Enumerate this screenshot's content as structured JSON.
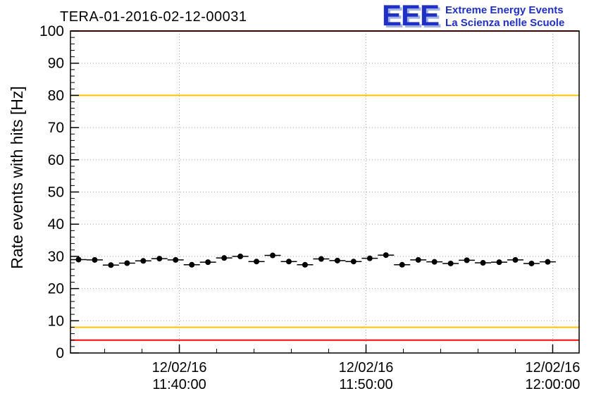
{
  "logo": {
    "text": "EEE",
    "line1": "Extreme Energy Events",
    "line2": "La Scienza nelle Scuole",
    "color": "#2130c4",
    "shadow_color": "#a3b2e6"
  },
  "chart_data": {
    "type": "scatter",
    "title": "TERA-01-2016-02-12-00031",
    "xlabel": "",
    "ylabel": "Rate events with hits [Hz]",
    "ylim": [
      0,
      100
    ],
    "yticks": [
      0,
      10,
      20,
      30,
      40,
      50,
      60,
      70,
      80,
      90,
      100
    ],
    "y_minor_step": 2,
    "grid": true,
    "grid_color": "#aaaaaa",
    "x_domain_seconds_from_1140": [
      -350,
      1285
    ],
    "x_minor_step_s": 120,
    "xticks": [
      {
        "s": 0,
        "date": "12/02/16",
        "time": "11:40:00"
      },
      {
        "s": 600,
        "date": "12/02/16",
        "time": "11:50:00"
      },
      {
        "s": 1200,
        "date": "12/02/16",
        "time": "12:00:00"
      }
    ],
    "thresholds": [
      {
        "y": 100,
        "color": "#ff0000"
      },
      {
        "y": 80,
        "color": "#ffc000"
      },
      {
        "y": 8,
        "color": "#ffc000"
      },
      {
        "y": 4,
        "color": "#ff0000"
      }
    ],
    "marker_color": "#000000",
    "xerr_s": 26,
    "yerr_hz": 0.8,
    "t_seconds_from_1140": [
      -324,
      -272,
      -220,
      -168,
      -116,
      -64,
      -12,
      40,
      92,
      144,
      196,
      248,
      300,
      352,
      404,
      456,
      508,
      560,
      612,
      664,
      716,
      768,
      820,
      872,
      924,
      976,
      1028,
      1080,
      1132,
      1184
    ],
    "rate_hz": [
      29.0,
      28.9,
      27.3,
      27.9,
      28.6,
      29.3,
      28.9,
      27.4,
      28.2,
      29.5,
      30.0,
      28.4,
      30.3,
      28.4,
      27.4,
      29.2,
      28.7,
      28.4,
      29.4,
      30.4,
      27.4,
      28.9,
      28.3,
      27.8,
      28.8,
      28.0,
      28.2,
      28.9,
      27.8,
      28.3
    ]
  }
}
